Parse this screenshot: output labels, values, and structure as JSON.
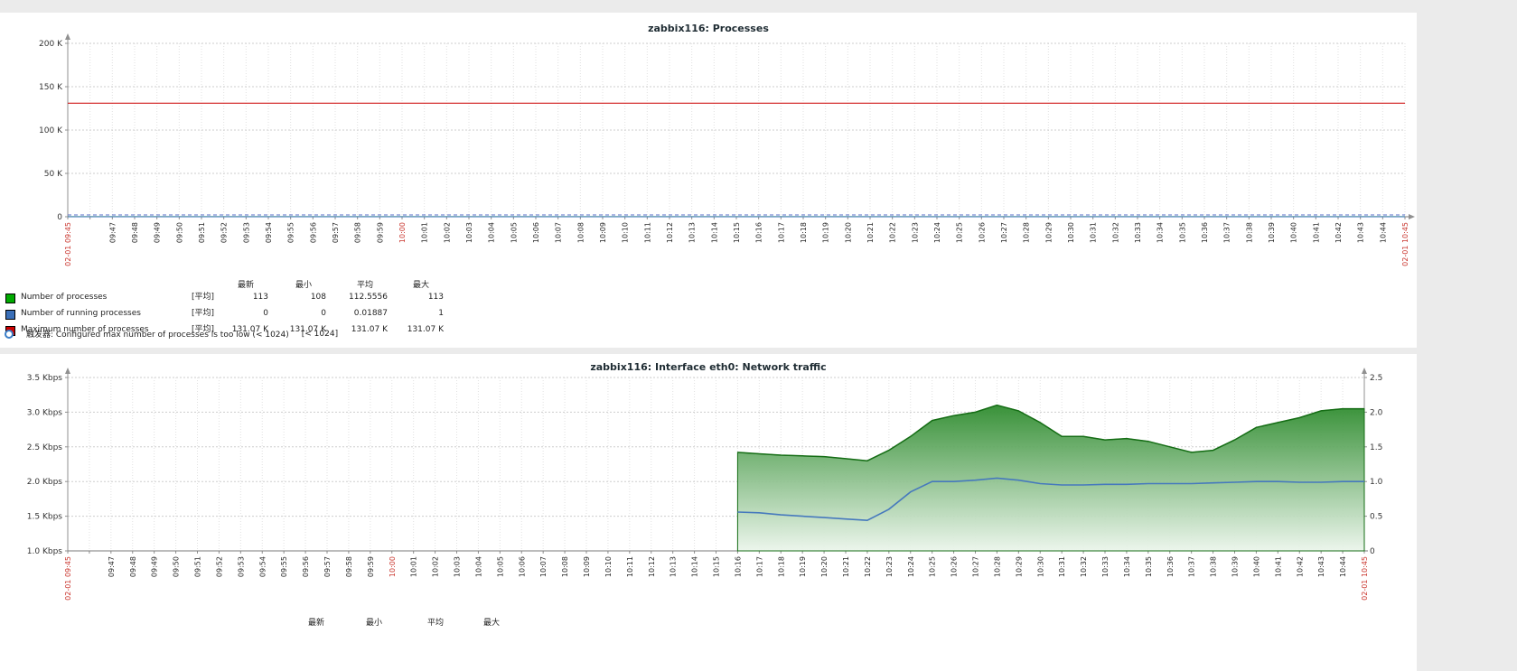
{
  "page": {
    "bg_color": "#ebebeb",
    "panel_color": "#ffffff",
    "axis_red_label_color": "#c9342c"
  },
  "x_axis": {
    "red_indices": [
      0,
      15,
      60
    ],
    "labels": [
      "02-01 09:45",
      "",
      "09:47",
      "09:48",
      "09:49",
      "09:50",
      "09:51",
      "09:52",
      "09:53",
      "09:54",
      "09:55",
      "09:56",
      "09:57",
      "09:58",
      "09:59",
      "10:00",
      "10:01",
      "10:02",
      "10:03",
      "10:04",
      "10:05",
      "10:06",
      "10:07",
      "10:08",
      "10:09",
      "10:10",
      "10:11",
      "10:12",
      "10:13",
      "10:14",
      "10:15",
      "10:16",
      "10:17",
      "10:18",
      "10:19",
      "10:20",
      "10:21",
      "10:22",
      "10:23",
      "10:24",
      "10:25",
      "10:26",
      "10:27",
      "10:28",
      "10:29",
      "10:30",
      "10:31",
      "10:32",
      "10:33",
      "10:34",
      "10:35",
      "10:36",
      "10:37",
      "10:38",
      "10:39",
      "10:40",
      "10:41",
      "10:42",
      "10:43",
      "10:44",
      "02-01 10:45"
    ]
  },
  "chart_data": [
    {
      "type": "line",
      "title": "zabbix116: Processes",
      "x_range": [
        "02-01 09:45",
        "02-01 10:45"
      ],
      "grid": true,
      "x_arrow": true,
      "y_axis": {
        "min": 0,
        "max": 200000,
        "ticks": [
          [
            0,
            "0"
          ],
          [
            50000,
            "50 K"
          ],
          [
            100000,
            "100 K"
          ],
          [
            150000,
            "150 K"
          ],
          [
            200000,
            "200 K"
          ]
        ]
      },
      "series": [
        {
          "name": "Maximum number of processes",
          "type": "line",
          "color": "#CC0000",
          "width": 1,
          "points": [
            [
              0,
              131070
            ],
            [
              60,
              131070
            ]
          ]
        },
        {
          "name": "Number of processes",
          "type": "line",
          "color": "#00AA00",
          "width": 1,
          "points": [
            [
              0,
              113
            ],
            [
              60,
              113
            ]
          ]
        },
        {
          "name": "Number of running processes",
          "type": "line",
          "color": "#3A6FB8",
          "width": 1,
          "points": [
            [
              0,
              0
            ],
            [
              60,
              0
            ]
          ]
        }
      ],
      "trigger_line": {
        "value": 1024,
        "color": "#5A6FC8"
      },
      "legend": {
        "headers": [
          "最新",
          "最小",
          "平均",
          "最大"
        ],
        "rows": [
          {
            "color": "#00AA00",
            "label": "Number of processes",
            "func": "[平均]",
            "values": [
              "113",
              "108",
              "112.5556",
              "113"
            ]
          },
          {
            "color": "#3A6FB8",
            "label": "Number of running processes",
            "func": "[平均]",
            "values": [
              "0",
              "0",
              "0.01887",
              "1"
            ]
          },
          {
            "color": "#CC0000",
            "label": "Maximum number of processes",
            "func": "[平均]",
            "values": [
              "131.07 K",
              "131.07 K",
              "131.07 K",
              "131.07 K"
            ]
          }
        ],
        "trigger": {
          "icon_color": "#3A7EC8",
          "label": "触发器: Configured max number of processes is too low (< 1024)",
          "value": "[< 1024]"
        }
      }
    },
    {
      "type": "area",
      "title": "zabbix116: Interface eth0: Network traffic",
      "x_range": [
        "02-01 09:45",
        "02-01 10:45"
      ],
      "grid": true,
      "x_arrow": false,
      "y_axis_left": {
        "min": 1.0,
        "max": 3.5,
        "unit": "Kbps",
        "ticks": [
          [
            1.0,
            "1.0 Kbps"
          ],
          [
            1.5,
            "1.5 Kbps"
          ],
          [
            2.0,
            "2.0 Kbps"
          ],
          [
            2.5,
            "2.5 Kbps"
          ],
          [
            3.0,
            "3.0 Kbps"
          ],
          [
            3.5,
            "3.5 Kbps"
          ]
        ]
      },
      "y_axis_right": {
        "min": 0,
        "max": 2.5,
        "ticks": [
          [
            0,
            "0"
          ],
          [
            0.5,
            "0.5"
          ],
          [
            1.0,
            "1.0"
          ],
          [
            1.5,
            "1.5"
          ],
          [
            2.0,
            "2.0"
          ],
          [
            2.5,
            "2.5"
          ]
        ]
      },
      "series": [
        {
          "type": "area",
          "axis": "left",
          "color": "#156D15",
          "fill_top": "#2F8C2F",
          "fill_bottom": "#EBF5EB",
          "width": 1.5,
          "points": [
            [
              31,
              2.42
            ],
            [
              32,
              2.4
            ],
            [
              33,
              2.38
            ],
            [
              34,
              2.37
            ],
            [
              35,
              2.36
            ],
            [
              36,
              2.33
            ],
            [
              37,
              2.3
            ],
            [
              38,
              2.45
            ],
            [
              39,
              2.65
            ],
            [
              40,
              2.88
            ],
            [
              41,
              2.95
            ],
            [
              42,
              3.0
            ],
            [
              43,
              3.1
            ],
            [
              44,
              3.02
            ],
            [
              45,
              2.85
            ],
            [
              46,
              2.65
            ],
            [
              47,
              2.65
            ],
            [
              48,
              2.6
            ],
            [
              49,
              2.62
            ],
            [
              50,
              2.58
            ],
            [
              51,
              2.5
            ],
            [
              52,
              2.42
            ],
            [
              53,
              2.45
            ],
            [
              54,
              2.6
            ],
            [
              55,
              2.78
            ],
            [
              56,
              2.85
            ],
            [
              57,
              2.92
            ],
            [
              58,
              3.02
            ],
            [
              59,
              3.05
            ],
            [
              60,
              3.05
            ]
          ]
        },
        {
          "type": "line",
          "axis": "right",
          "color": "#4679BD",
          "width": 1.6,
          "points": [
            [
              31,
              0.56
            ],
            [
              32,
              0.55
            ],
            [
              33,
              0.52
            ],
            [
              34,
              0.5
            ],
            [
              35,
              0.48
            ],
            [
              36,
              0.46
            ],
            [
              37,
              0.44
            ],
            [
              38,
              0.6
            ],
            [
              39,
              0.85
            ],
            [
              40,
              1.0
            ],
            [
              41,
              1.0
            ],
            [
              42,
              1.02
            ],
            [
              43,
              1.05
            ],
            [
              44,
              1.02
            ],
            [
              45,
              0.97
            ],
            [
              46,
              0.95
            ],
            [
              47,
              0.95
            ],
            [
              48,
              0.96
            ],
            [
              49,
              0.96
            ],
            [
              50,
              0.97
            ],
            [
              51,
              0.97
            ],
            [
              52,
              0.97
            ],
            [
              53,
              0.98
            ],
            [
              54,
              0.99
            ],
            [
              55,
              1.0
            ],
            [
              56,
              1.0
            ],
            [
              57,
              0.99
            ],
            [
              58,
              0.99
            ],
            [
              59,
              1.0
            ],
            [
              60,
              1.0
            ]
          ]
        }
      ],
      "legend": {
        "headers": [
          "最新",
          "最小",
          "平均",
          "最大"
        ],
        "rows": []
      }
    }
  ]
}
